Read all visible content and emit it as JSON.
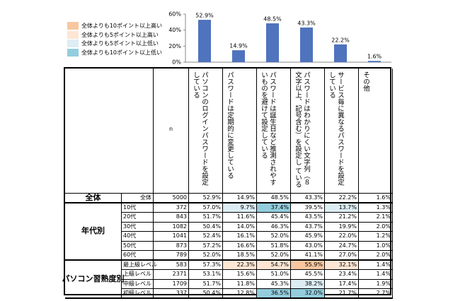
{
  "legend": [
    {
      "label": "全体よりも10ポイント以上高い",
      "color": "#f8c7a0"
    },
    {
      "label": "全体よりも5ポイント以上高い",
      "color": "#fde6d4"
    },
    {
      "label": "全体よりも5ポイント以上低い",
      "color": "#dcedf3"
    },
    {
      "label": "全体よりも10ポイント以上低い",
      "color": "#93cddd"
    }
  ],
  "chart_data": {
    "type": "bar",
    "categories": [
      null,
      null,
      null,
      null,
      null,
      null
    ],
    "values": [
      52.9,
      14.9,
      48.5,
      43.3,
      22.2,
      1.6
    ],
    "value_labels": [
      "52.9%",
      "14.9%",
      "48.5%",
      "43.3%",
      "22.2%",
      "1.6%"
    ],
    "color": "#4f73bd",
    "ylim": [
      0,
      60
    ],
    "yticks": [
      {
        "value": 0,
        "label": "0%"
      },
      {
        "value": 20,
        "label": "20%"
      },
      {
        "value": 40,
        "label": "40%"
      },
      {
        "value": 60,
        "label": "60%"
      }
    ]
  },
  "table": {
    "header": {
      "n": "n",
      "columns": [
        "パソコンのログインパスワードを設定している",
        "パスワードは定期的に変更している",
        "パスワードは誕生日など推測されやすいものを避けて設定している",
        "パスワードはわかりにくい文字列（８文字以上、記号含む）を設定し ている",
        "サービス毎に異なるパスワードを設定している",
        "その他"
      ]
    },
    "groups": [
      {
        "label": "全体",
        "rows": [
          {
            "label": "全体",
            "n": "5000",
            "cells": [
              "52.9%",
              "14.9%",
              "48.5%",
              "43.3%",
              "22.2%",
              "1.6%"
            ],
            "highlight": [
              null,
              null,
              null,
              null,
              null,
              null
            ]
          }
        ]
      },
      {
        "label": "年代別",
        "rows": [
          {
            "label": "10代",
            "n": "372",
            "cells": [
              "57.0%",
              "9.7%",
              "37.4%",
              "39.5%",
              "13.7%",
              "1.3%"
            ],
            "highlight": [
              null,
              "#dcedf3",
              "#93cddd",
              null,
              "#dcedf3",
              null
            ]
          },
          {
            "label": "20代",
            "n": "843",
            "cells": [
              "51.7%",
              "11.6%",
              "45.4%",
              "43.5%",
              "21.2%",
              "2.1%"
            ],
            "highlight": [
              null,
              null,
              null,
              null,
              null,
              null
            ]
          },
          {
            "label": "30代",
            "n": "1082",
            "cells": [
              "50.4%",
              "14.0%",
              "46.3%",
              "43.7%",
              "19.9%",
              "2.0%"
            ],
            "highlight": [
              null,
              null,
              null,
              null,
              null,
              null
            ]
          },
          {
            "label": "40代",
            "n": "1041",
            "cells": [
              "52.4%",
              "16.1%",
              "52.0%",
              "45.9%",
              "22.0%",
              "1.2%"
            ],
            "highlight": [
              null,
              null,
              null,
              null,
              null,
              null
            ]
          },
          {
            "label": "50代",
            "n": "873",
            "cells": [
              "57.2%",
              "16.6%",
              "51.8%",
              "43.0%",
              "24.7%",
              "1.0%"
            ],
            "highlight": [
              null,
              null,
              null,
              null,
              null,
              null
            ]
          },
          {
            "label": "60代",
            "n": "789",
            "cells": [
              "52.0%",
              "18.5%",
              "52.0%",
              "41.1%",
              "27.0%",
              "2.0%"
            ],
            "highlight": [
              null,
              null,
              null,
              null,
              null,
              null
            ]
          }
        ]
      },
      {
        "label": "パソコン習熟度別",
        "rows": [
          {
            "label": "最上級レベル",
            "n": "583",
            "cells": [
              "57.3%",
              "22.3%",
              "54.7%",
              "55.9%",
              "32.1%",
              "1.4%"
            ],
            "highlight": [
              null,
              "#fde6d4",
              "#fde6d4",
              "#f8c7a0",
              "#fde6d4",
              null
            ]
          },
          {
            "label": "上級レベル",
            "n": "2371",
            "cells": [
              "53.1%",
              "15.6%",
              "51.0%",
              "45.5%",
              "23.4%",
              "1.4%"
            ],
            "highlight": [
              null,
              null,
              null,
              null,
              null,
              null
            ]
          },
          {
            "label": "中級レベル",
            "n": "1709",
            "cells": [
              "51.7%",
              "11.8%",
              "45.3%",
              "38.2%",
              "17.4%",
              "1.9%"
            ],
            "highlight": [
              null,
              null,
              null,
              "#dcedf3",
              null,
              null
            ]
          },
          {
            "label": "初級レベル",
            "n": "337",
            "cells": [
              "50.4%",
              "12.8%",
              "36.5%",
              "32.0%",
              "21.7%",
              "2.7%"
            ],
            "highlight": [
              null,
              null,
              "#93cddd",
              "#93cddd",
              null,
              null
            ]
          }
        ]
      }
    ]
  }
}
